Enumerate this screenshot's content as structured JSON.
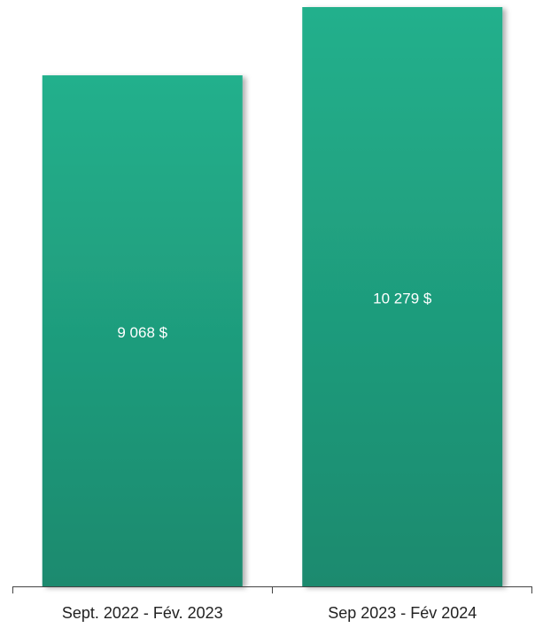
{
  "chart_data": {
    "type": "bar",
    "categories": [
      "Sept. 2022 - Fév. 2023",
      "Sep 2023 - Fév 2024"
    ],
    "values": [
      9068,
      10279
    ],
    "value_labels": [
      "9 068 $",
      "10 279 $"
    ],
    "color": "#1f9e7e"
  }
}
